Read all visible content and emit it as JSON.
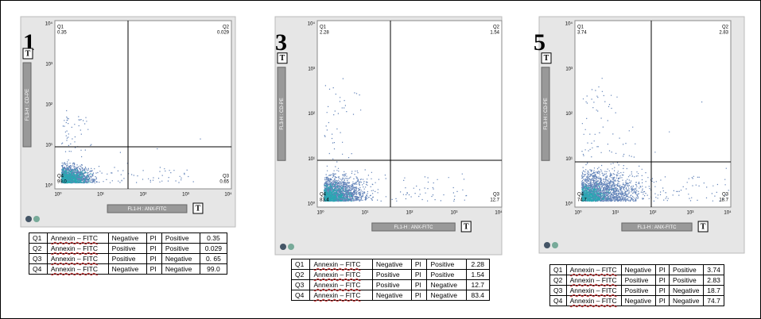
{
  "panels": [
    {
      "number": "1",
      "q_labels": [
        "Q1",
        "Q2",
        "Q3",
        "Q4"
      ],
      "q_values": [
        "0.35",
        "0.029",
        "0.65",
        "99.0"
      ],
      "x_axis": "FL1-H : ANX-FITC",
      "y_axis": "FL3-H : CD-PE",
      "button": "T",
      "ticks": [
        "10⁰",
        "10¹",
        "10²",
        "10³",
        "10⁴"
      ],
      "table": [
        [
          "Q1",
          "Annexin – FITC",
          "Negative",
          "PI",
          "Positive",
          "0.35"
        ],
        [
          "Q2",
          "Annexin – FITC",
          "Positive",
          "PI",
          "Positive",
          "0.029"
        ],
        [
          "Q3",
          "Annexin – FITC",
          "Positive",
          "PI",
          "Negative",
          "0. 65"
        ],
        [
          "Q4",
          "Annexin – FITC",
          "Negative",
          "PI",
          "Negative",
          "99.0"
        ]
      ]
    },
    {
      "number": "3",
      "q_labels": [
        "Q1",
        "Q2",
        "Q3",
        "Q4"
      ],
      "q_values": [
        "2.28",
        "1.54",
        "12.7",
        "83.4"
      ],
      "x_axis": "FL1-H : ANX-FITC",
      "y_axis": "FL3-H : CD-PE",
      "button": "T",
      "ticks": [
        "10⁰",
        "10¹",
        "10²",
        "10³",
        "10⁴"
      ],
      "table": [
        [
          "Q1",
          "Annexin – FITC",
          "Negative",
          "PI",
          "Positive",
          "2.28"
        ],
        [
          "Q2",
          "Annexin – FITC",
          "Positive",
          "PI",
          "Positive",
          "1.54"
        ],
        [
          "Q3",
          "Annexin – FITC",
          "Positive",
          "PI",
          "Negative",
          "12.7"
        ],
        [
          "Q4",
          "Annexin – FITC",
          "Negative",
          "PI",
          "Negative",
          "83.4"
        ]
      ]
    },
    {
      "number": "5",
      "q_labels": [
        "Q1",
        "Q2",
        "Q3",
        "Q4"
      ],
      "q_values": [
        "3.74",
        "2.83",
        "18.7",
        "74.7"
      ],
      "x_axis": "FL1-H : ANX-FITC",
      "y_axis": "FL3-H : CD-PE",
      "button": "T",
      "ticks": [
        "10⁰",
        "10¹",
        "10²",
        "10³",
        "10⁴"
      ],
      "table": [
        [
          "Q1",
          "Annexin – FITC",
          "Negative",
          "PI",
          "Positive",
          "3.74"
        ],
        [
          "Q2",
          "Annexin – FITC",
          "Positive",
          "PI",
          "Positive",
          "2.83"
        ],
        [
          "Q3",
          "Annexin – FITC",
          "Positive",
          "PI",
          "Negative",
          "18.7"
        ],
        [
          "Q4",
          "Annexin – FITC",
          "Negative",
          "PI",
          "Negative",
          "74.7"
        ]
      ]
    }
  ]
}
